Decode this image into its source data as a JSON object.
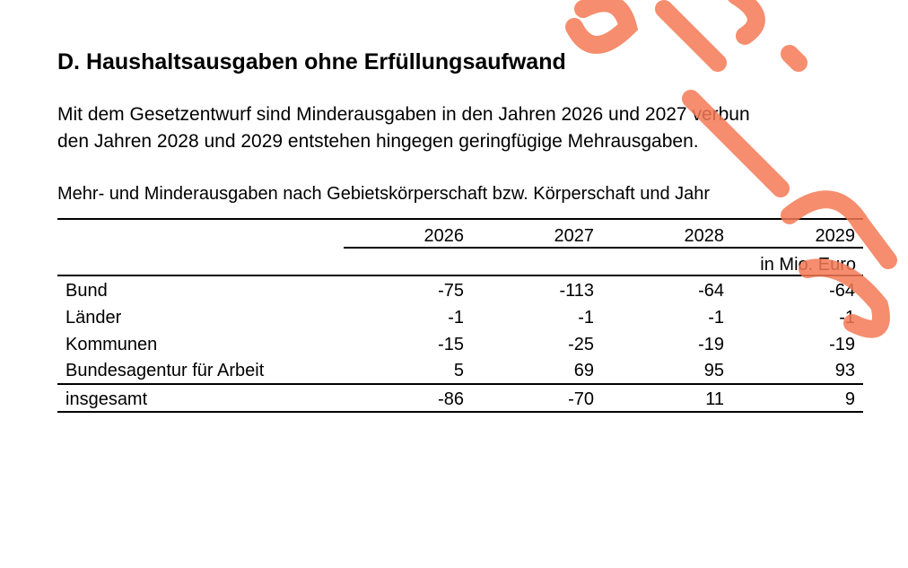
{
  "heading": "D. Haushaltsausgaben ohne Erfüllungsaufwand",
  "paragraph": [
    "Mit dem Gesetzentwurf sind Minderausgaben in den Jahren 2026 und 2027 verbun",
    "den Jahren 2028 und 2029 entstehen hingegen geringfügige Mehrausgaben."
  ],
  "table": {
    "caption": "Mehr- und Minderausgaben nach Gebietskörperschaft bzw. Körperschaft und Jahr",
    "columns": [
      "2026",
      "2027",
      "2028",
      "2029"
    ],
    "unit": "in Mio. Euro",
    "rows": [
      {
        "label": "Bund",
        "values": [
          -75,
          -113,
          -64,
          -64
        ]
      },
      {
        "label": "Länder",
        "values": [
          -1,
          -1,
          -1,
          -1
        ]
      },
      {
        "label": "Kommunen",
        "values": [
          -15,
          -25,
          -19,
          -19
        ]
      },
      {
        "label": "Bundesagentur für Arbeit",
        "values": [
          5,
          69,
          95,
          93
        ]
      }
    ],
    "total": {
      "label": "insgesamt",
      "values": [
        -86,
        -70,
        11,
        9
      ]
    }
  }
}
